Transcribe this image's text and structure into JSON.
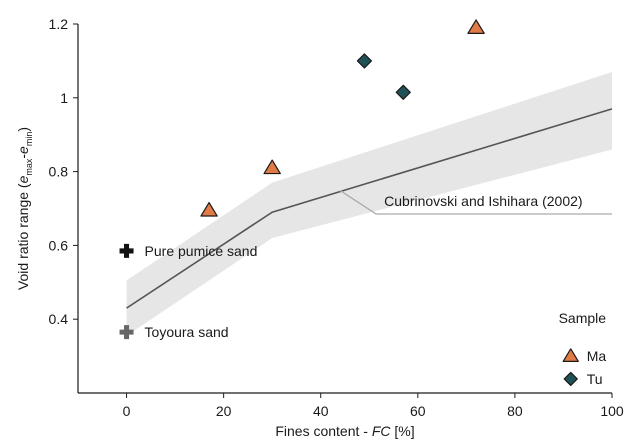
{
  "chart_data": {
    "type": "scatter",
    "xlabel_prefix": "Fines content - ",
    "xlabel_var": "FC",
    "xlabel_suffix": " [%]",
    "ylabel_prefix": "Void ratio range (",
    "ylabel_e": "e",
    "ylabel_max": "max",
    "ylabel_dash": "-",
    "ylabel_min": "min",
    "ylabel_suffix": ")",
    "xlim": [
      -10,
      100
    ],
    "ylim": [
      0.2,
      1.2
    ],
    "x_ticks": [
      0,
      20,
      40,
      60,
      80,
      100
    ],
    "x_tick_labels": [
      "0",
      "20",
      "40",
      "60",
      "80",
      "100"
    ],
    "y_ticks": [
      0.4,
      0.6,
      0.8,
      1.0,
      1.2
    ],
    "y_tick_labels": [
      "0.4",
      "0.6",
      "0.8",
      "1",
      "1.2"
    ],
    "grid": false,
    "series": [
      {
        "name": "Ma",
        "marker": "triangle",
        "color": "#e07b45",
        "x": [
          17,
          30,
          72
        ],
        "y": [
          0.695,
          0.81,
          1.19
        ]
      },
      {
        "name": "Tu",
        "marker": "diamond",
        "color": "#1e5256",
        "x": [
          49,
          57
        ],
        "y": [
          1.1,
          1.015
        ]
      }
    ],
    "reference_points": [
      {
        "label": "Pure pumice sand",
        "x": 0,
        "y": 0.585,
        "marker": "plus",
        "color": "#111111"
      },
      {
        "label": "Toyoura sand",
        "x": 0,
        "y": 0.365,
        "marker": "plus",
        "color": "#666666"
      }
    ],
    "trend_line": {
      "label": "Cubrinovski and Ishihara (2002)",
      "color": "#555555",
      "x": [
        0,
        30,
        100
      ],
      "y": [
        0.43,
        0.69,
        0.97
      ],
      "band_color": "#e6e6e6",
      "band_upper": [
        0.505,
        0.77,
        1.07
      ],
      "band_lower": [
        0.355,
        0.62,
        0.86
      ]
    },
    "legend": {
      "title": "Sample",
      "position": "bottom-right"
    }
  }
}
